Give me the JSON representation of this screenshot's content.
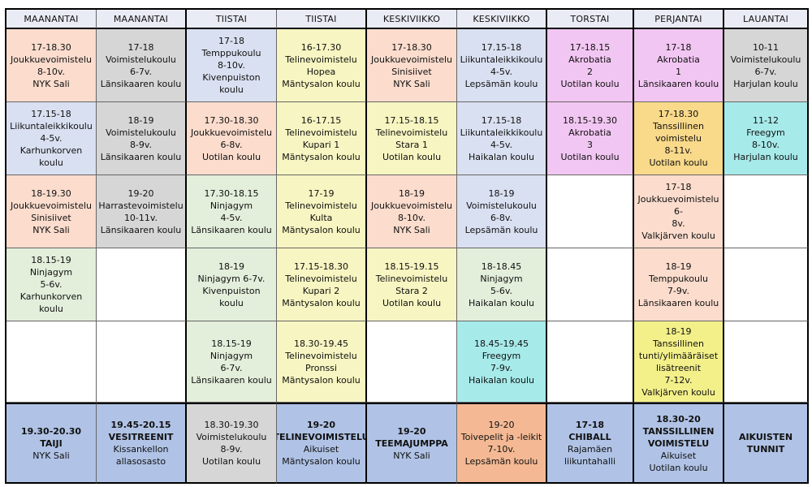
{
  "headers": [
    "MAANANTAI",
    "MAANANTAI",
    "TIISTAI",
    "TIISTAI",
    "KESKIVIIKKO",
    "KESKIVIIKKO",
    "TORSTAI",
    "PERJANTAI",
    "LAUANTAI"
  ],
  "colors": {
    "salmon": "#fbdccd",
    "gray": "#d6d6d6",
    "blue": "#d9e0f1",
    "yellow": "#f7f5c1",
    "pink": "#f2c6f2",
    "green": "#e3eedb",
    "cyan": "#a7eaea",
    "orange": "#f9d98a",
    "bright_yellow": "#f3f08a",
    "steel_blue": "#b0c3e6",
    "orange_last": "#f4b994"
  },
  "rows": [
    [
      {
        "color": "salmon",
        "lines": [
          "17-18.30",
          "Joukkuevoimistelu",
          "8-10v.",
          "NYK Sali"
        ]
      },
      {
        "color": "gray",
        "lines": [
          "17-18",
          "Voimistelukoulu",
          "6-7v.",
          "Länsikaaren koulu"
        ]
      },
      {
        "color": "blue",
        "lines": [
          "17-18",
          "Temppukoulu",
          "8-10v.",
          "Kivenpuiston koulu"
        ]
      },
      {
        "color": "yellow",
        "lines": [
          "16-17.30",
          "Telinevoimistelu",
          "Hopea",
          "Mäntysalon koulu"
        ]
      },
      {
        "color": "salmon",
        "lines": [
          "17-18.30",
          "Joukkuevoimistelu",
          "Sinisiivet",
          "NYK Sali"
        ]
      },
      {
        "color": "blue",
        "lines": [
          "17.15-18",
          "Liikuntaleikkikoulu",
          "4-5v.",
          "Lepsämän koulu"
        ]
      },
      {
        "color": "pink",
        "lines": [
          "17-18.15",
          "Akrobatia",
          "2",
          "Uotilan koulu"
        ]
      },
      {
        "color": "pink",
        "lines": [
          "17-18",
          "Akrobatia",
          "1",
          "Länsikaaren koulu"
        ]
      },
      {
        "color": "gray",
        "lines": [
          "10-11",
          "Voimistelukoulu",
          "6-7v.",
          "Harjulan koulu"
        ]
      }
    ],
    [
      {
        "color": "blue",
        "lines": [
          "17.15-18",
          "Liikuntaleikkikoulu",
          "4-5v.",
          "Karhunkorven koulu"
        ]
      },
      {
        "color": "gray",
        "lines": [
          "18-19",
          "Voimistelukoulu",
          "8-9v.",
          "Länsikaaren koulu"
        ]
      },
      {
        "color": "salmon",
        "lines": [
          "17.30-18.30",
          "Joukkuevoimistelu",
          "6-8v.",
          "Uotilan koulu"
        ]
      },
      {
        "color": "yellow",
        "lines": [
          "16-17.15",
          "Telinevoimistelu",
          "Kupari 1",
          "Mäntysalon koulu"
        ]
      },
      {
        "color": "yellow",
        "lines": [
          "17.15-18.15",
          "Telinevoimistelu",
          "Stara 1",
          "Uotilan koulu"
        ]
      },
      {
        "color": "blue",
        "lines": [
          "17.15-18",
          "Liikuntaleikkikoulu",
          "4-5v.",
          "Haikalan koulu"
        ]
      },
      {
        "color": "pink",
        "lines": [
          "18.15-19.30",
          "Akrobatia",
          "3",
          "Uotilan koulu"
        ]
      },
      {
        "color": "orange",
        "lines": [
          "17-18.30",
          "Tanssillinen",
          "voimistelu",
          "8-11v.",
          "Uotilan koulu"
        ]
      },
      {
        "color": "cyan",
        "lines": [
          "11-12",
          "Freegym",
          "8-10v.",
          "Harjulan koulu"
        ]
      }
    ],
    [
      {
        "color": "salmon",
        "lines": [
          "18-19.30",
          "Joukkuevoimistelu",
          "Sinisiivet",
          "NYK Sali"
        ]
      },
      {
        "color": "gray",
        "lines": [
          "19-20",
          "Harrastevoimistelu",
          "10-11v.",
          "Länsikaaren koulu"
        ]
      },
      {
        "color": "green",
        "lines": [
          "17.30-18.15",
          "Ninjagym",
          "4-5v.",
          "Länsikaaren koulu"
        ]
      },
      {
        "color": "yellow",
        "lines": [
          "17-19",
          "Telinevoimistelu",
          "Kulta",
          "Mäntysalon koulu"
        ]
      },
      {
        "color": "salmon",
        "lines": [
          "18-19",
          "Joukkuevoimistelu",
          "8-10v.",
          "NYK Sali"
        ]
      },
      {
        "color": "blue",
        "lines": [
          "18-19",
          "Voimistelukoulu",
          "6-8v.",
          "Lepsämän koulu"
        ]
      },
      {
        "color": "white",
        "lines": []
      },
      {
        "color": "salmon",
        "lines": [
          "17-18",
          "Joukkuevoimistelu 6-",
          "8v.",
          "Valkjärven koulu"
        ]
      },
      {
        "color": "white",
        "lines": []
      }
    ],
    [
      {
        "color": "green",
        "lines": [
          "18.15-19",
          "Ninjagym",
          "5-6v.",
          "Karhunkorven koulu"
        ]
      },
      {
        "color": "white",
        "lines": []
      },
      {
        "color": "green",
        "lines": [
          "18-19",
          "Ninjagym 6-7v.",
          "Kivenpuiston koulu"
        ]
      },
      {
        "color": "yellow",
        "lines": [
          "17.15-18.30",
          "Telinevoimistelu",
          "Kupari 2",
          "Mäntysalon koulu"
        ]
      },
      {
        "color": "yellow",
        "lines": [
          "18.15-19.15",
          "Telinevoimistelu",
          "Stara 2",
          "Uotilan koulu"
        ]
      },
      {
        "color": "green",
        "lines": [
          "18-18.45",
          "Ninjagym",
          "5-6v.",
          "Haikalan koulu"
        ]
      },
      {
        "color": "white",
        "lines": []
      },
      {
        "color": "salmon",
        "lines": [
          "18-19",
          "Temppukoulu",
          "7-9v.",
          "Länsikaaren koulu"
        ]
      },
      {
        "color": "white",
        "lines": []
      }
    ],
    [
      {
        "color": "white",
        "lines": []
      },
      {
        "color": "white",
        "lines": []
      },
      {
        "color": "green",
        "lines": [
          "18.15-19",
          "Ninjagym",
          "6-7v.",
          "Länsikaaren koulu"
        ]
      },
      {
        "color": "yellow",
        "lines": [
          "18.30-19.45",
          "Telinevoimistelu",
          "Pronssi",
          "Mäntysalon koulu"
        ]
      },
      {
        "color": "white",
        "lines": []
      },
      {
        "color": "cyan",
        "lines": [
          "18.45-19.45",
          "Freegym",
          "7-9v.",
          "Haikalan koulu"
        ]
      },
      {
        "color": "white",
        "lines": []
      },
      {
        "color": "bright_yellow",
        "lines": [
          "18-19",
          "Tanssillinen",
          "tunti/ylimääräiset",
          "lisätreenit",
          "7-12v.",
          "Valkjärven koulu"
        ]
      },
      {
        "color": "white",
        "lines": []
      }
    ]
  ],
  "last_row": [
    {
      "color": "steel_blue",
      "bold_lines": 2,
      "lines": [
        "19.30-20.30",
        "TAIJI",
        "NYK Sali"
      ]
    },
    {
      "color": "steel_blue",
      "bold_lines": 2,
      "lines": [
        "19.45-20.15",
        "VESITREENIT",
        "Kissankellon",
        "allasosasto"
      ]
    },
    {
      "color": "gray",
      "bold_lines": 0,
      "lines": [
        "18.30-19.30",
        "Voimistelukoulu",
        "8-9v.",
        "Uotilan koulu"
      ]
    },
    {
      "color": "steel_blue",
      "bold_lines": 2,
      "lines": [
        "19-20",
        "TELINEVOIMISTELU",
        "Aikuiset",
        "Mäntysalon koulu"
      ]
    },
    {
      "color": "steel_blue",
      "bold_lines": 2,
      "lines": [
        "19-20",
        "TEEMAJUMPPA",
        "NYK Sali"
      ]
    },
    {
      "color": "orange_last",
      "bold_lines": 0,
      "lines": [
        "19-20",
        "Toivepelit ja -leikit",
        "7-10v.",
        "Lepsämän koulu"
      ]
    },
    {
      "color": "steel_blue",
      "bold_lines": 2,
      "lines": [
        "17-18",
        "CHIBALL",
        "Rajamäen",
        "liikuntahalli"
      ]
    },
    {
      "color": "steel_blue",
      "bold_lines": 3,
      "lines": [
        "18.30-20",
        "TANSSILLINEN",
        "VOIMISTELU",
        "Aikuiset",
        "Uotilan koulu"
      ]
    },
    {
      "color": "steel_blue",
      "bold_lines": 2,
      "lines": [
        "AIKUISTEN",
        "TUNNIT"
      ]
    }
  ]
}
